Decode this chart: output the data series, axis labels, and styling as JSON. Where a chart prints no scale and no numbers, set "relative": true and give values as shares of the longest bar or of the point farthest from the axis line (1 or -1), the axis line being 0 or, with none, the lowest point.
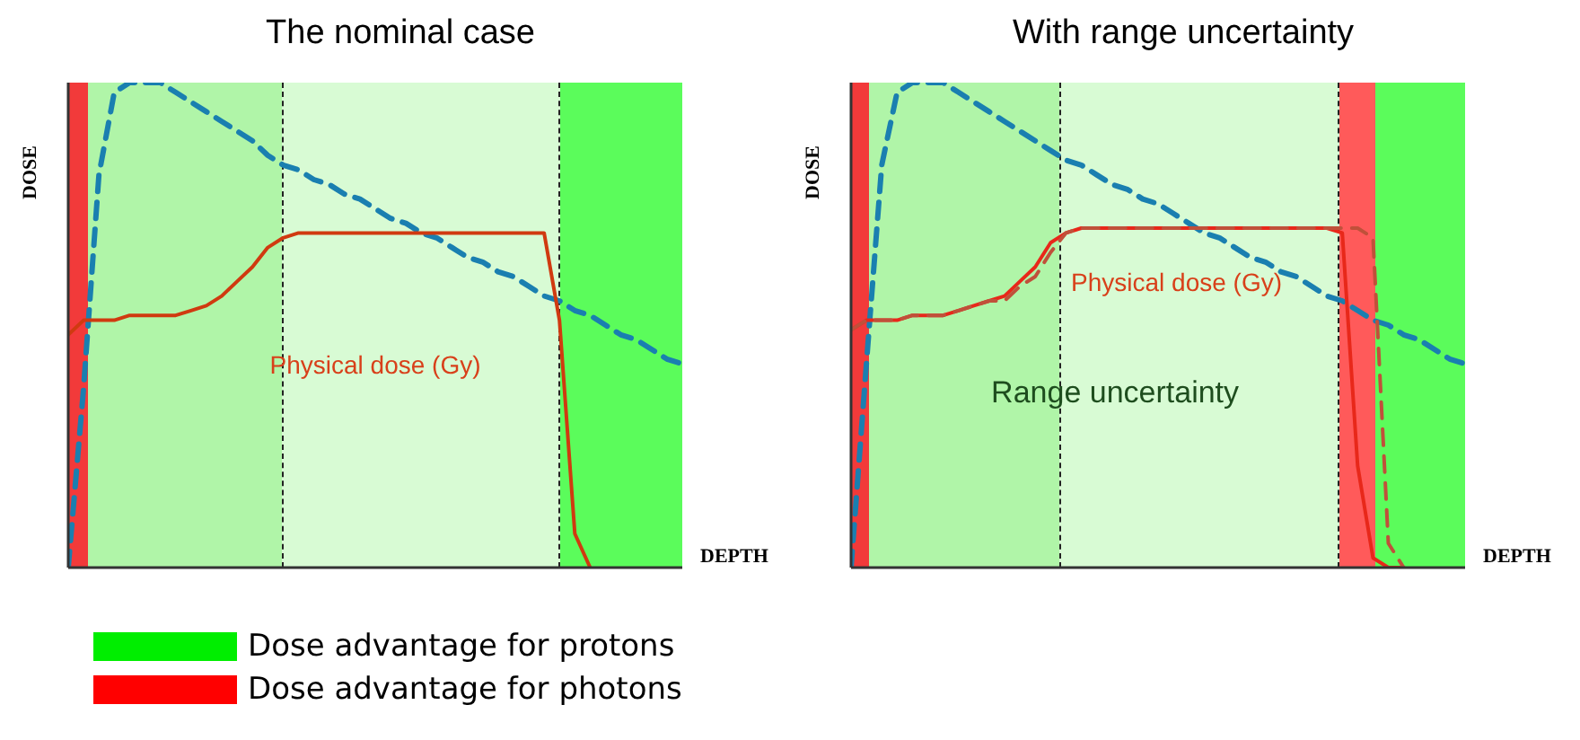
{
  "chart_data": [
    {
      "type": "line",
      "title": "The nominal case",
      "xlabel": "DEPTH",
      "ylabel": "DOSE",
      "relative": true,
      "grid": false,
      "categories": [
        null,
        null,
        null,
        null,
        null,
        null,
        null,
        null,
        null,
        null,
        null,
        null,
        null,
        null,
        null,
        null,
        null,
        null,
        null,
        null,
        null,
        null,
        null,
        null,
        null,
        null,
        null,
        null,
        null,
        null,
        null,
        null,
        null,
        null,
        null,
        null,
        null,
        null,
        null,
        null,
        null
      ],
      "series": [
        {
          "color": "#1a7fb0",
          "line_style": "dashed",
          "values": [
            0,
            0.37,
            0.81,
            0.98,
            1,
            1,
            1,
            0.98,
            0.96,
            0.94,
            0.92,
            0.9,
            0.88,
            0.85,
            0.83,
            0.82,
            0.8,
            0.79,
            0.77,
            0.76,
            0.74,
            0.72,
            0.71,
            0.69,
            0.68,
            0.66,
            0.64,
            0.63,
            0.61,
            0.6,
            0.58,
            0.56,
            0.55,
            0.53,
            0.52,
            0.5,
            0.48,
            0.47,
            0.45,
            0.43,
            0.42
          ]
        },
        {
          "color": "#d03a10",
          "line_style": "solid",
          "values": [
            0.48,
            0.51,
            0.51,
            0.51,
            0.52,
            0.52,
            0.52,
            0.52,
            0.53,
            0.54,
            0.56,
            0.59,
            0.62,
            0.66,
            0.68,
            0.69,
            0.69,
            0.69,
            0.69,
            0.69,
            0.69,
            0.69,
            0.69,
            0.69,
            0.69,
            0.69,
            0.69,
            0.69,
            0.69,
            0.69,
            0.69,
            0.69,
            0.51,
            0.07,
            0,
            null,
            null,
            null,
            null,
            null,
            null
          ]
        }
      ],
      "annotations": [
        "Physical dose (Gy)",
        "Dose advantage for protons",
        "Dose advantage for photons"
      ]
    },
    {
      "type": "line",
      "title": "With range uncertainty",
      "xlabel": "DEPTH",
      "ylabel": "DOSE",
      "relative": true,
      "grid": false,
      "categories": [
        null,
        null,
        null,
        null,
        null,
        null,
        null,
        null,
        null,
        null,
        null,
        null,
        null,
        null,
        null,
        null,
        null,
        null,
        null,
        null,
        null,
        null,
        null,
        null,
        null,
        null,
        null,
        null,
        null,
        null,
        null,
        null,
        null,
        null,
        null,
        null,
        null,
        null,
        null,
        null,
        null
      ],
      "series": [
        {
          "color": "#1a7fb0",
          "line_style": "dashed",
          "values": [
            0,
            0.42,
            0.83,
            0.98,
            1,
            1,
            1,
            0.98,
            0.96,
            0.94,
            0.92,
            0.9,
            0.88,
            0.86,
            0.84,
            0.83,
            0.81,
            0.79,
            0.78,
            0.76,
            0.75,
            0.73,
            0.71,
            0.69,
            0.68,
            0.66,
            0.64,
            0.63,
            0.61,
            0.6,
            0.58,
            0.56,
            0.55,
            0.53,
            0.51,
            0.5,
            0.48,
            0.47,
            0.45,
            0.43,
            0.42
          ]
        },
        {
          "color": "#e8281a",
          "line_style": "solid",
          "values": [
            0.49,
            0.51,
            0.51,
            0.51,
            0.52,
            0.52,
            0.52,
            0.53,
            0.54,
            0.55,
            0.56,
            0.59,
            0.62,
            0.67,
            0.69,
            0.7,
            0.7,
            0.7,
            0.7,
            0.7,
            0.7,
            0.7,
            0.7,
            0.7,
            0.7,
            0.7,
            0.7,
            0.7,
            0.7,
            0.7,
            0.7,
            0.7,
            0.69,
            0.21,
            0.02,
            0,
            0,
            null,
            null,
            null,
            null
          ]
        },
        {
          "color": "#c0503a",
          "line_style": "dashed",
          "values": [
            0.49,
            0.51,
            0.51,
            0.51,
            0.52,
            0.52,
            0.52,
            0.53,
            0.54,
            0.55,
            0.55,
            0.58,
            0.6,
            0.65,
            0.69,
            0.7,
            0.7,
            0.7,
            0.7,
            0.7,
            0.7,
            0.7,
            0.7,
            0.7,
            0.7,
            0.7,
            0.7,
            0.7,
            0.7,
            0.7,
            0.7,
            0.7,
            0.7,
            0.7,
            0.68,
            0.05,
            0,
            null,
            null,
            null,
            null
          ]
        }
      ],
      "annotations": [
        "Physical dose (Gy)",
        "Range uncertainty"
      ]
    }
  ]
}
